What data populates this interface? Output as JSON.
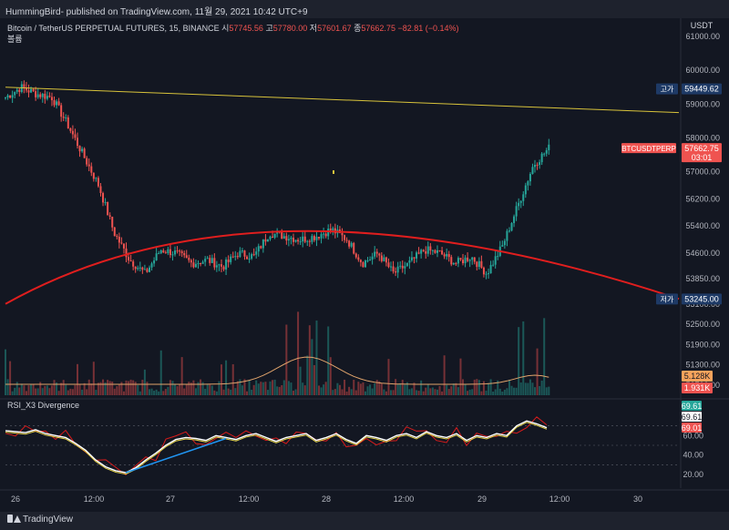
{
  "header": {
    "text": "HummingBird- published on TradingView.com, 11월 29, 2021 10:42 UTC+9"
  },
  "legend": {
    "symbol": "Bitcoin / TetherUS PERPETUAL FUTURES, 15, BINANCE",
    "open_label": "시",
    "open": "57745.56",
    "high_label": "고",
    "high": "57780.00",
    "low_label": "저",
    "low": "57601.67",
    "close_label": "종",
    "close": "57662.75",
    "change": "−82.81 (−0.14%)",
    "volume_label": "볼륨"
  },
  "rsi_legend": "RSI_X3 Divergence",
  "footer": {
    "brand": "TradingView"
  },
  "colors": {
    "background": "#131722",
    "up": "#26a69a",
    "down": "#ef5350",
    "arc": "#e01e1e",
    "trendline": "#d8c33b",
    "rsi_main": "#ffffff",
    "rsi_fast": "#d81b1b",
    "rsi_slow": "#e5d34a",
    "rsi_blue": "#2196f3"
  },
  "chart_data": {
    "type": "candlestick",
    "symbol": "BTCUSDTPERP",
    "currency": "USDT",
    "price_axis": {
      "unit": "USDT",
      "ticks": [
        "61000.00",
        "60000.00",
        "59000.00",
        "58000.00",
        "57000.00",
        "56200.00",
        "55400.00",
        "54600.00",
        "53850.00",
        "53100.00",
        "52500.00",
        "51900.00",
        "51300.00",
        "50700.00"
      ],
      "tick_values": [
        61000,
        60000,
        59000,
        58000,
        57000,
        56200,
        55400,
        54600,
        53850,
        53100,
        52500,
        51900,
        51300,
        50700
      ],
      "range": [
        50500,
        61600
      ]
    },
    "price_badges": [
      {
        "label": "고가",
        "value": "59449.62",
        "num": 59449.62,
        "color": "#1e3a66"
      },
      {
        "label": "BTCUSDTPERP",
        "value": "57662.75",
        "num": 57662.75,
        "countdown": "03:01",
        "color": "#ef5350"
      },
      {
        "label": "저가",
        "value": "53245.00",
        "num": 53245.0,
        "color": "#1e3a66"
      }
    ],
    "volume_badges": [
      {
        "value": "5.128K",
        "color": "#f7a35c"
      },
      {
        "value": "1.931K",
        "color": "#ef5350"
      }
    ],
    "time_axis": {
      "labels": [
        "26",
        "12:00",
        "27",
        "12:00",
        "28",
        "12:00",
        "29",
        "12:00",
        "30"
      ]
    },
    "candles_summary": {
      "start": 59200,
      "path": [
        59200,
        59500,
        59300,
        59200,
        58400,
        57500,
        56600,
        55200,
        54400,
        54000,
        54700,
        54600,
        54300,
        54400,
        54200,
        54600,
        54500,
        55200,
        55100,
        55000,
        55100,
        55300,
        55000,
        54300,
        54600,
        54000,
        54300,
        54700,
        54600,
        54300,
        54500,
        54000,
        54800,
        56000,
        57200,
        57700
      ],
      "candle_count": 235
    },
    "lines": [
      {
        "name": "trendline",
        "from": [
          0,
          59500
        ],
        "to": [
          235,
          58750
        ]
      },
      {
        "name": "arc",
        "from": [
          0,
          53100
        ],
        "peak": [
          110,
          55250
        ],
        "to": [
          235,
          53250
        ]
      }
    ],
    "rsi": {
      "title": "RSI_X3 Divergence",
      "ticks": [
        "60.00",
        "40.00",
        "20.00"
      ],
      "tick_values": [
        60,
        40,
        20
      ],
      "range": [
        8,
        92
      ],
      "badges": [
        {
          "value": "69.61",
          "color": "#26a69a"
        },
        {
          "value": "69.61",
          "color": "#ffffff"
        },
        {
          "value": "69.01",
          "color": "#ef5350"
        }
      ],
      "main": [
        65,
        64,
        63,
        66,
        62,
        60,
        58,
        52,
        45,
        35,
        28,
        24,
        22,
        27,
        35,
        42,
        50,
        56,
        58,
        57,
        55,
        60,
        58,
        56,
        60,
        62,
        58,
        54,
        58,
        60,
        62,
        55,
        58,
        62,
        56,
        52,
        60,
        58,
        55,
        60,
        62,
        58,
        64,
        60,
        58,
        62,
        55,
        60,
        58,
        62,
        60,
        70,
        75,
        72,
        68
      ]
    }
  }
}
